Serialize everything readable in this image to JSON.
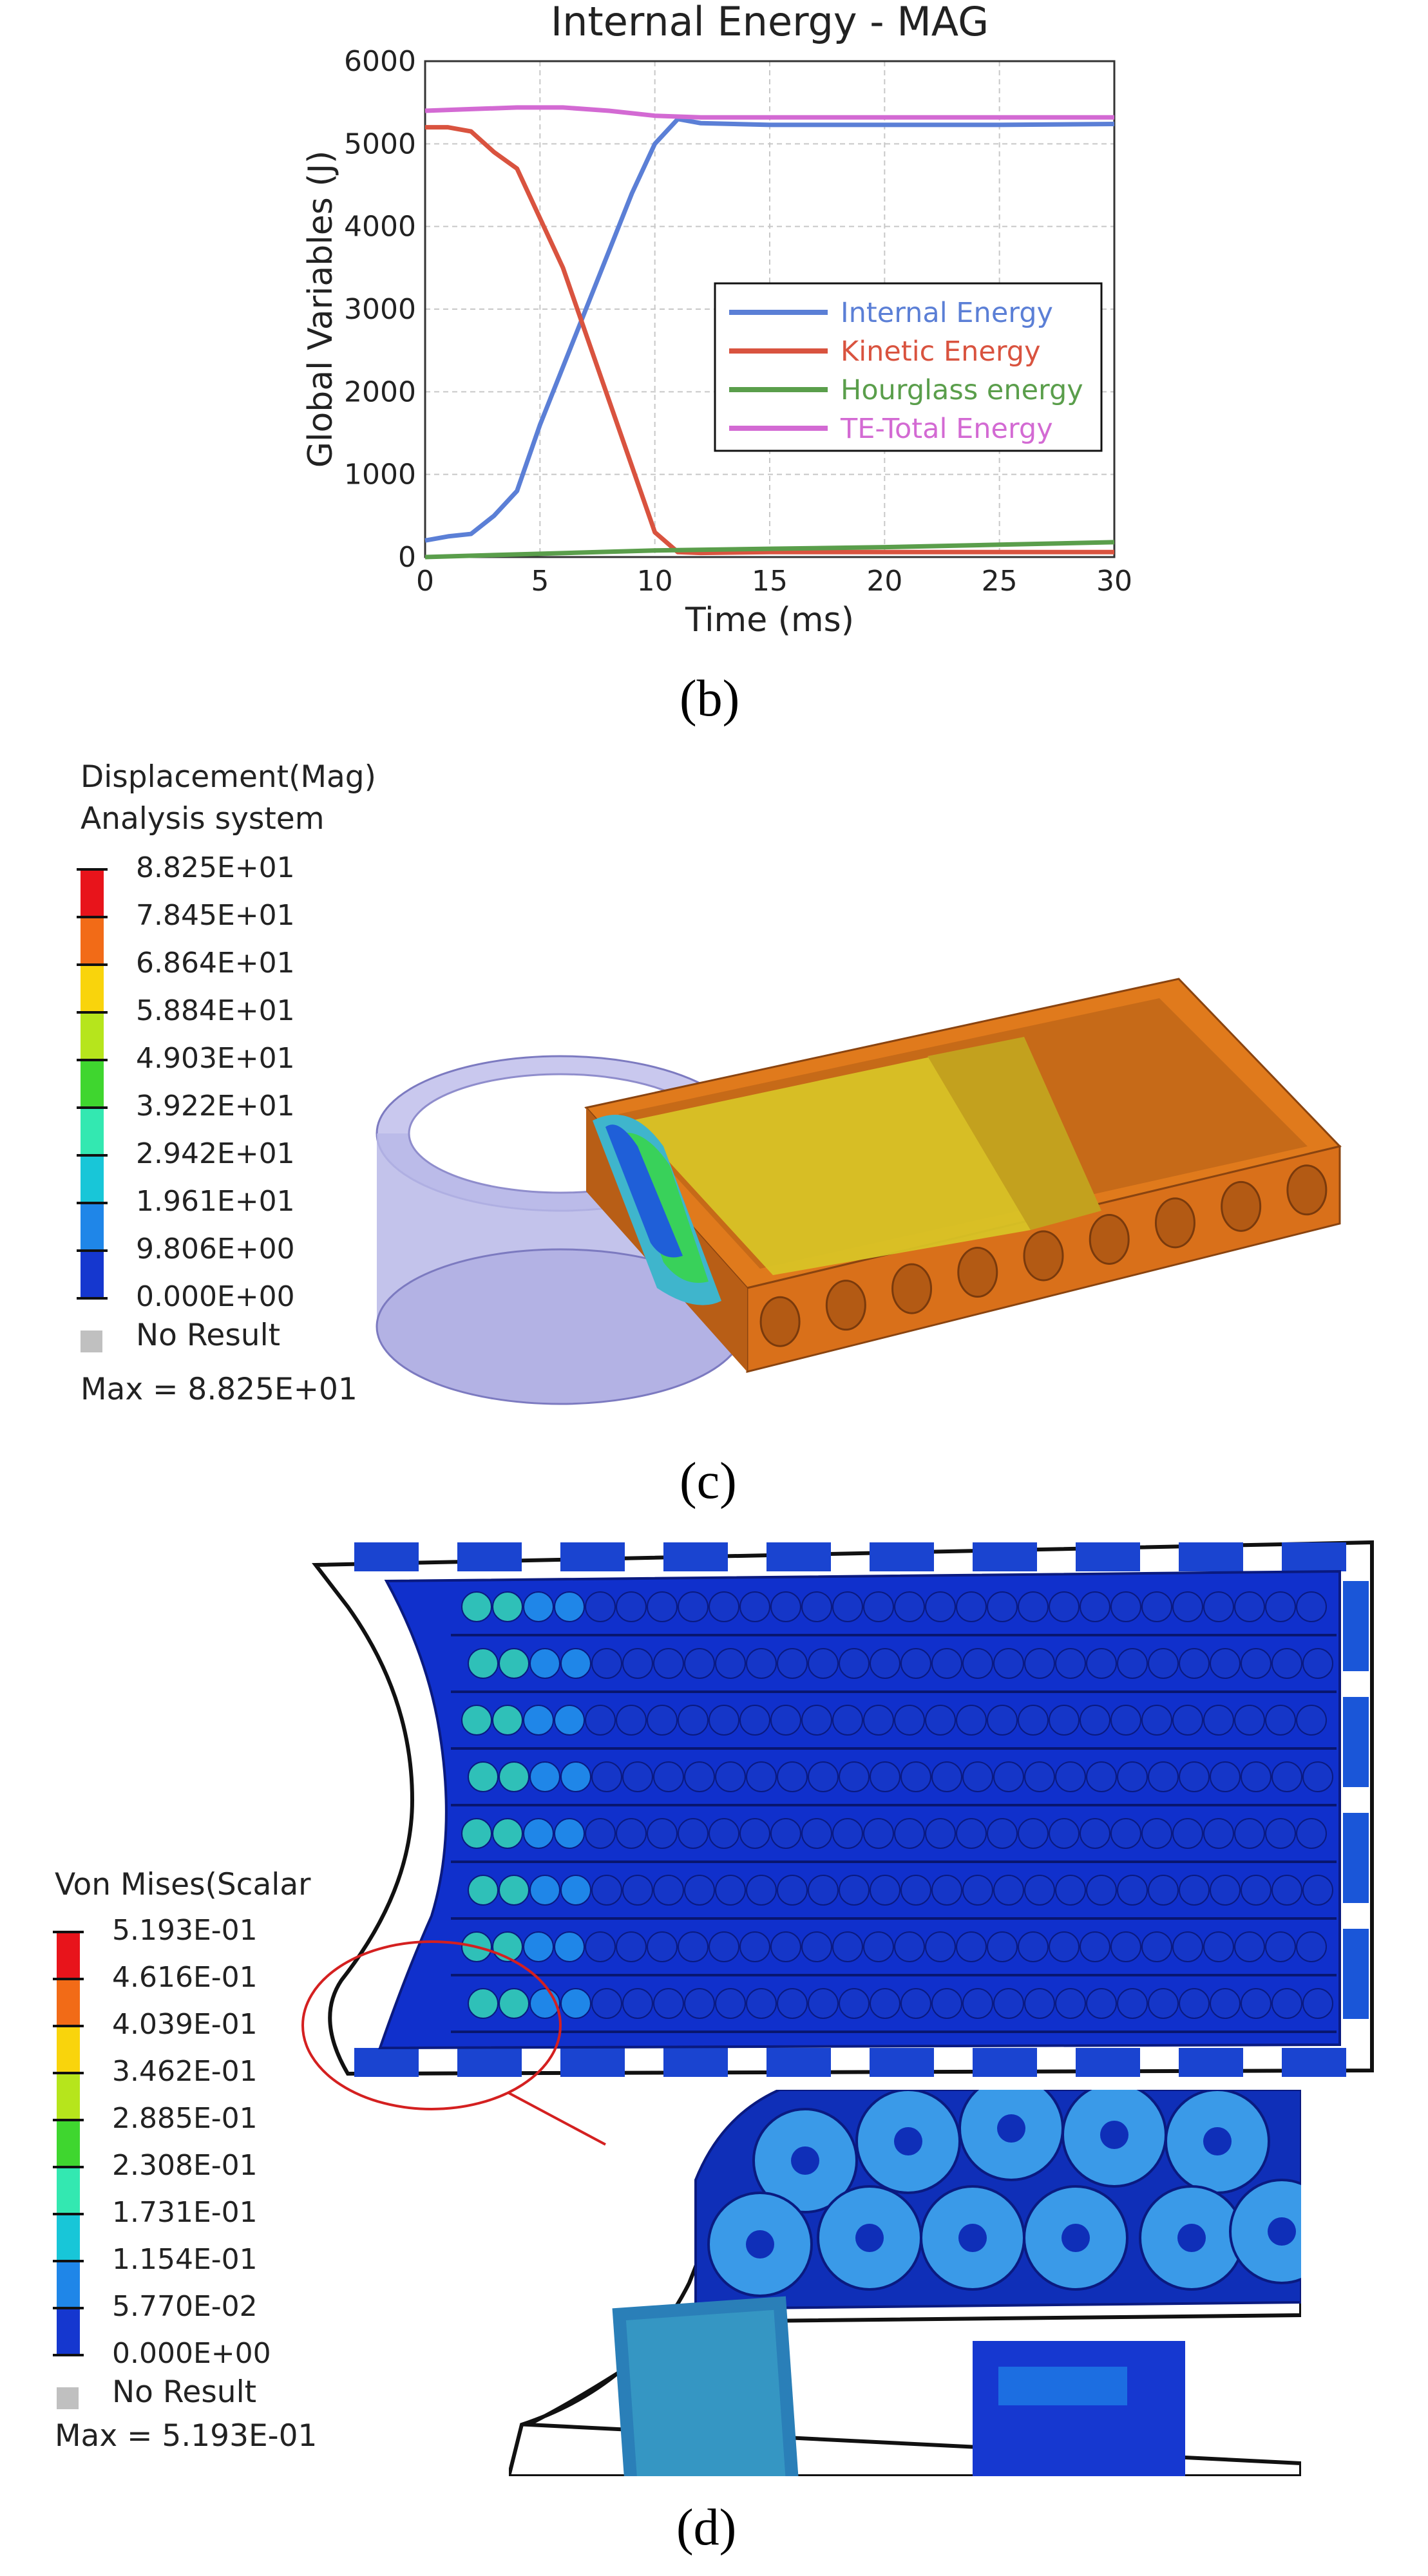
{
  "chart_b": {
    "chart_data": {
      "type": "line",
      "title": "Internal Energy - MAG",
      "xlabel": "Time (ms)",
      "ylabel": "Global Variables (J)",
      "xlim": [
        0,
        30
      ],
      "ylim": [
        0,
        6000
      ],
      "x_ticks": [
        "0",
        "5",
        "10",
        "15",
        "20",
        "25",
        "30"
      ],
      "y_ticks": [
        "0",
        "1000",
        "2000",
        "3000",
        "4000",
        "5000",
        "6000"
      ],
      "grid": true,
      "legend_position": "center-right",
      "series": [
        {
          "name": "Internal Energy",
          "color": "#5b7fd6",
          "x": [
            0,
            1,
            2,
            3,
            4,
            5,
            6,
            7,
            8,
            9,
            10,
            11,
            12,
            15,
            20,
            25,
            30
          ],
          "y": [
            200,
            250,
            280,
            500,
            800,
            1600,
            2300,
            3000,
            3700,
            4400,
            5000,
            5300,
            5250,
            5230,
            5230,
            5230,
            5240
          ]
        },
        {
          "name": "Kinetic Energy",
          "color": "#d9533f",
          "x": [
            0,
            1,
            2,
            3,
            4,
            5,
            6,
            7,
            8,
            9,
            10,
            11,
            12,
            15,
            20,
            25,
            30
          ],
          "y": [
            5200,
            5200,
            5150,
            4900,
            4700,
            4100,
            3500,
            2700,
            1900,
            1100,
            300,
            60,
            50,
            60,
            60,
            60,
            60
          ]
        },
        {
          "name": "Hourglass energy",
          "color": "#5a9e4b",
          "x": [
            0,
            5,
            10,
            15,
            20,
            25,
            30
          ],
          "y": [
            0,
            40,
            80,
            100,
            120,
            150,
            180
          ]
        },
        {
          "name": "TE-Total Energy",
          "color": "#d36ad3",
          "x": [
            0,
            2,
            4,
            6,
            8,
            10,
            12,
            15,
            20,
            25,
            30
          ],
          "y": [
            5400,
            5420,
            5440,
            5440,
            5400,
            5340,
            5320,
            5320,
            5320,
            5320,
            5320
          ]
        }
      ]
    },
    "caption": "(b)"
  },
  "panel_c": {
    "legend_title_1": "Displacement(Mag)",
    "legend_title_2": "Analysis system",
    "scale_values": [
      "8.825E+01",
      "7.845E+01",
      "6.864E+01",
      "5.884E+01",
      "4.903E+01",
      "3.922E+01",
      "2.942E+01",
      "1.961E+01",
      "9.806E+00",
      "0.000E+00"
    ],
    "no_result": "No Result",
    "max_label": "Max =  8.825E+01",
    "caption": "(c)"
  },
  "panel_d": {
    "legend_title": "Von Mises(Scalar",
    "scale_values": [
      "5.193E-01",
      "4.616E-01",
      "4.039E-01",
      "3.462E-01",
      "2.885E-01",
      "2.308E-01",
      "1.731E-01",
      "1.154E-01",
      "5.770E-02",
      "0.000E+00"
    ],
    "no_result": "No Result",
    "max_label": "Max =  5.193E-01",
    "caption": "(d)"
  },
  "colors": {
    "scale": [
      "#e8141b",
      "#f26b17",
      "#f9d40c",
      "#b6e51c",
      "#3fd62f",
      "#33e8b1",
      "#18c6d8",
      "#1f86e8",
      "#1537cf",
      "#0a12a8"
    ],
    "no_result": "#c0c0c0"
  }
}
